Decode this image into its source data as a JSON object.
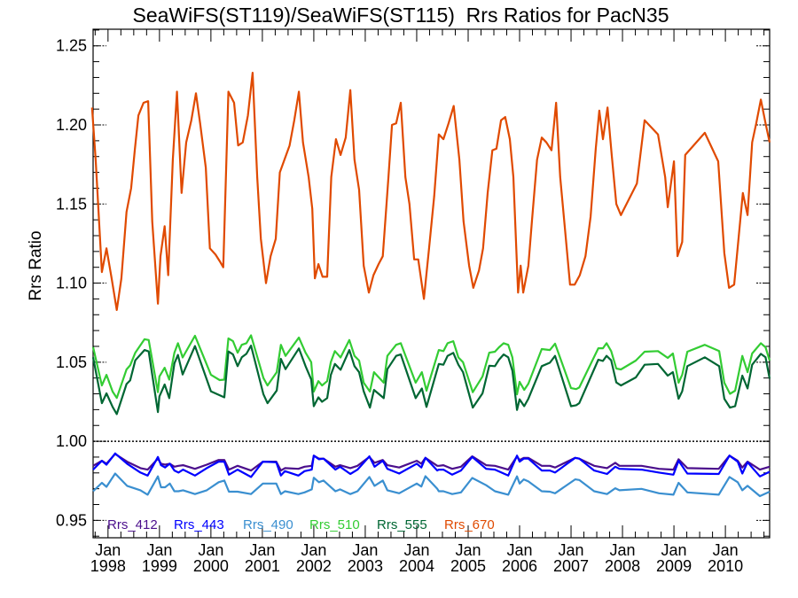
{
  "chart_data": {
    "type": "line",
    "title": "SeaWiFS(ST119)/SeaWiFS(ST115)  Rrs Ratios for PacN35",
    "ylabel": "Rrs Ratio",
    "xlabel": "",
    "xlim": [
      1997.71,
      2010.86
    ],
    "ylim": [
      0.939,
      1.2605
    ],
    "y_ticks": [
      0.95,
      1.0,
      1.05,
      1.1,
      1.15,
      1.2,
      1.25
    ],
    "y_tick_labels": [
      "0.95",
      "1.00",
      "1.05",
      "1.10",
      "1.15",
      "1.20",
      "1.25"
    ],
    "y_minor_step": 0.01,
    "x_ticks": [
      1998,
      1999,
      2000,
      2001,
      2002,
      2003,
      2004,
      2005,
      2006,
      2007,
      2008,
      2009,
      2010
    ],
    "x_tick_month": "Jan",
    "x_tick_labels": [
      "1998",
      "1999",
      "2000",
      "2001",
      "2002",
      "2003",
      "2004",
      "2005",
      "2006",
      "2007",
      "2008",
      "2009",
      "2010"
    ],
    "reference_line": 1.0,
    "legend_position": "bottom-left",
    "x_sets": {
      "red": [
        1997.69,
        1997.76,
        1997.88,
        1997.97,
        1998.07,
        1998.17,
        1998.26,
        1998.36,
        1998.45,
        1998.52,
        1998.59,
        1998.69,
        1998.78,
        1998.86,
        1998.97,
        1999.02,
        1999.1,
        1999.17,
        1999.26,
        1999.34,
        1999.43,
        1999.52,
        1999.62,
        1999.71,
        1999.79,
        1999.9,
        1999.98,
        2000.09,
        2000.17,
        2000.24,
        2000.34,
        2000.45,
        2000.53,
        2000.62,
        2000.72,
        2000.81,
        2000.9,
        2000.97,
        2001.07,
        2001.16,
        2001.26,
        2001.34,
        2001.43,
        2001.53,
        2001.62,
        2001.71,
        2001.79,
        2001.9,
        2001.97,
        2002.02,
        2002.09,
        2002.17,
        2002.26,
        2002.34,
        2002.43,
        2002.52,
        2002.62,
        2002.71,
        2002.79,
        2002.88,
        2002.97,
        2003.07,
        2003.16,
        2003.26,
        2003.34,
        2003.45,
        2003.52,
        2003.6,
        2003.69,
        2003.78,
        2003.86,
        2003.95,
        2004.03,
        2004.14,
        2004.24,
        2004.34,
        2004.43,
        2004.52,
        2004.62,
        2004.72,
        2004.83,
        2004.91,
        2005.02,
        2005.1,
        2005.21,
        2005.29,
        2005.38,
        2005.47,
        2005.55,
        2005.64,
        2005.72,
        2005.81,
        2005.88,
        2005.97,
        2006.02,
        2006.07,
        2006.17,
        2006.24,
        2006.34,
        2006.43,
        2006.52,
        2006.62,
        2006.71,
        2006.79,
        2006.9,
        2006.98,
        2007.07,
        2007.17,
        2007.28,
        2007.38,
        2007.48,
        2007.55,
        2007.62,
        2007.71,
        2007.79,
        2007.88,
        2007.97,
        2008.28,
        2008.43,
        2008.69,
        2008.83,
        2008.88,
        2009.0,
        2009.07,
        2009.16,
        2009.22,
        2009.6,
        2009.86,
        2009.98,
        2010.07,
        2010.17,
        2010.34,
        2010.43,
        2010.52,
        2010.6,
        2010.69,
        2010.78,
        2010.86
      ],
      "green": [
        1997.71,
        1997.88,
        1997.97,
        1998.09,
        1998.17,
        1998.36,
        1998.43,
        1998.53,
        1998.71,
        1998.79,
        1998.97,
        1999.0,
        1999.1,
        1999.19,
        1999.29,
        1999.36,
        1999.45,
        1999.69,
        2000.0,
        2000.17,
        2000.26,
        2000.34,
        2000.43,
        2000.52,
        2000.6,
        2000.69,
        2000.78,
        2001.02,
        2001.1,
        2001.28,
        2001.36,
        2001.45,
        2001.71,
        2001.84,
        2001.95,
        2002.0,
        2002.09,
        2002.16,
        2002.26,
        2002.33,
        2002.41,
        2002.52,
        2002.69,
        2002.79,
        2002.88,
        2002.97,
        2003.09,
        2003.17,
        2003.36,
        2003.43,
        2003.6,
        2003.69,
        2003.98,
        2004.1,
        2004.19,
        2004.43,
        2004.52,
        2004.6,
        2004.71,
        2004.81,
        2004.9,
        2005.09,
        2005.28,
        2005.41,
        2005.52,
        2005.6,
        2005.69,
        2005.78,
        2005.86,
        2005.95,
        2006.0,
        2006.09,
        2006.17,
        2006.43,
        2006.59,
        2006.69,
        2007.0,
        2007.1,
        2007.16,
        2007.53,
        2007.62,
        2007.69,
        2007.78,
        2007.88,
        2007.97,
        2008.26,
        2008.43,
        2008.69,
        2008.88,
        2008.98,
        2009.09,
        2009.16,
        2009.26,
        2009.6,
        2009.88,
        2009.98,
        2010.09,
        2010.19,
        2010.33,
        2010.43,
        2010.52,
        2010.69,
        2010.78,
        2010.86
      ],
      "blue": [
        1997.71,
        1997.88,
        1997.97,
        1998.14,
        1998.37,
        1998.63,
        1998.77,
        1998.97,
        1999.03,
        1999.11,
        1999.2,
        1999.29,
        1999.37,
        1999.46,
        1999.69,
        1999.92,
        2000.15,
        2000.26,
        2000.35,
        2000.52,
        2000.78,
        2001.01,
        2001.27,
        2001.36,
        2001.44,
        2001.7,
        2001.82,
        2001.96,
        2002.0,
        2002.1,
        2002.19,
        2002.42,
        2002.51,
        2002.71,
        2002.85,
        2003.08,
        2003.18,
        2003.34,
        2003.43,
        2003.66,
        2004.0,
        2004.09,
        2004.17,
        2004.4,
        2004.43,
        2004.52,
        2004.69,
        2004.86,
        2005.08,
        2005.35,
        2005.52,
        2005.78,
        2005.95,
        2006.0,
        2006.08,
        2006.17,
        2006.43,
        2006.59,
        2006.69,
        2007.08,
        2007.16,
        2007.45,
        2007.7,
        2007.86,
        2007.94,
        2008.37,
        2008.71,
        2008.99,
        2009.09,
        2009.26,
        2009.87,
        2010.08,
        2010.24,
        2010.33,
        2010.43,
        2010.67,
        2010.86
      ]
    },
    "series": [
      {
        "name": "Rrs_412",
        "color": "#4b0f8c",
        "x_set": "blue",
        "y": [
          0.9845,
          0.9877,
          0.9858,
          0.992,
          0.9871,
          0.983,
          0.9821,
          0.989,
          0.9858,
          0.9852,
          0.9858,
          0.9839,
          0.9845,
          0.9849,
          0.9826,
          0.9852,
          0.9882,
          0.9882,
          0.9821,
          0.9845,
          0.9815,
          0.9871,
          0.9871,
          0.9815,
          0.983,
          0.9826,
          0.9839,
          0.9845,
          0.9909,
          0.989,
          0.989,
          0.9839,
          0.9849,
          0.983,
          0.9845,
          0.9901,
          0.9864,
          0.9882,
          0.9849,
          0.9834,
          0.9877,
          0.9858,
          0.9895,
          0.9845,
          0.9845,
          0.9849,
          0.9826,
          0.9839,
          0.9905,
          0.9849,
          0.9845,
          0.9821,
          0.9905,
          0.9882,
          0.9895,
          0.9895,
          0.9845,
          0.9845,
          0.9834,
          0.9895,
          0.989,
          0.9845,
          0.983,
          0.9864,
          0.9845,
          0.9845,
          0.9826,
          0.9821,
          0.9886,
          0.983,
          0.9826,
          0.9909,
          0.9877,
          0.9834,
          0.9871,
          0.9821,
          0.9839
        ]
      },
      {
        "name": "Rrs_443",
        "color": "#0000ff",
        "x_set": "blue",
        "y": [
          0.9821,
          0.9877,
          0.9852,
          0.9923,
          0.9858,
          0.9802,
          0.9783,
          0.9901,
          0.9849,
          0.9834,
          0.9858,
          0.9815,
          0.9802,
          0.9821,
          0.9783,
          0.983,
          0.9871,
          0.9871,
          0.9789,
          0.9821,
          0.9774,
          0.9871,
          0.9867,
          0.9783,
          0.9811,
          0.9783,
          0.9811,
          0.9821,
          0.9909,
          0.9886,
          0.989,
          0.9821,
          0.9839,
          0.9793,
          0.9821,
          0.9905,
          0.9839,
          0.9877,
          0.9826,
          0.9796,
          0.9858,
          0.9834,
          0.9895,
          0.9815,
          0.9821,
          0.9821,
          0.9789,
          0.9815,
          0.9901,
          0.9826,
          0.9821,
          0.9783,
          0.9909,
          0.9871,
          0.989,
          0.989,
          0.9815,
          0.9815,
          0.9802,
          0.9895,
          0.989,
          0.9815,
          0.9793,
          0.9839,
          0.9826,
          0.9821,
          0.9802,
          0.9789,
          0.9877,
          0.9796,
          0.9793,
          0.9909,
          0.9871,
          0.9796,
          0.9867,
          0.9778,
          0.9807
        ]
      },
      {
        "name": "Rrs_490",
        "color": "#3a8fd0",
        "x_set": "blue",
        "y": [
          0.9684,
          0.9737,
          0.9712,
          0.9796,
          0.9718,
          0.969,
          0.9662,
          0.9778,
          0.9709,
          0.9709,
          0.9733,
          0.9684,
          0.9684,
          0.969,
          0.9666,
          0.969,
          0.9741,
          0.9752,
          0.9681,
          0.9681,
          0.9666,
          0.9733,
          0.9733,
          0.9666,
          0.9684,
          0.9666,
          0.9677,
          0.9696,
          0.977,
          0.9741,
          0.9752,
          0.9684,
          0.9696,
          0.9666,
          0.9684,
          0.9774,
          0.9718,
          0.9752,
          0.969,
          0.9671,
          0.9733,
          0.9714,
          0.9779,
          0.9699,
          0.9684,
          0.9684,
          0.9666,
          0.9677,
          0.9768,
          0.9722,
          0.9684,
          0.9662,
          0.9778,
          0.9733,
          0.9759,
          0.9746,
          0.9684,
          0.9681,
          0.9671,
          0.9759,
          0.9755,
          0.9684,
          0.9666,
          0.9703,
          0.969,
          0.9699,
          0.9671,
          0.9662,
          0.9737,
          0.9677,
          0.9662,
          0.9774,
          0.9741,
          0.969,
          0.9718,
          0.9653,
          0.9681
        ]
      },
      {
        "name": "Rrs_510",
        "color": "#33cc33",
        "x_set": "green",
        "y": [
          1.0596,
          1.0353,
          1.042,
          1.0314,
          1.0274,
          1.0454,
          1.048,
          1.056,
          1.0645,
          1.064,
          1.031,
          1.041,
          1.0465,
          1.039,
          1.056,
          1.062,
          1.053,
          1.0667,
          1.042,
          1.0387,
          1.039,
          1.065,
          1.0633,
          1.056,
          1.061,
          1.062,
          1.067,
          1.04,
          1.0353,
          1.0437,
          1.061,
          1.054,
          1.0656,
          1.056,
          1.05,
          1.0314,
          1.038,
          1.0353,
          1.038,
          1.05,
          1.057,
          1.053,
          1.064,
          1.054,
          1.051,
          1.037,
          1.0314,
          1.0437,
          1.037,
          1.054,
          1.061,
          1.062,
          1.037,
          1.0437,
          1.032,
          1.0577,
          1.057,
          1.062,
          1.0633,
          1.053,
          1.05,
          1.031,
          1.041,
          1.056,
          1.0566,
          1.0594,
          1.062,
          1.061,
          1.053,
          1.0297,
          1.0376,
          1.0325,
          1.0364,
          1.0583,
          1.0577,
          1.0617,
          1.0336,
          1.033,
          1.034,
          1.0588,
          1.0588,
          1.062,
          1.057,
          1.046,
          1.0454,
          1.051,
          1.0566,
          1.057,
          1.0527,
          1.0555,
          1.037,
          1.042,
          1.0566,
          1.061,
          1.057,
          1.037,
          1.03,
          1.032,
          1.054,
          1.0437,
          1.0555,
          1.062,
          1.0594,
          1.051
        ]
      },
      {
        "name": "Rrs_555",
        "color": "#006633",
        "x_set": "green",
        "y": [
          1.0531,
          1.0241,
          1.0303,
          1.0217,
          1.0172,
          1.0362,
          1.0385,
          1.0512,
          1.0577,
          1.0568,
          1.0185,
          1.0284,
          1.0359,
          1.0273,
          1.0493,
          1.0546,
          1.0422,
          1.0602,
          1.0316,
          1.0291,
          1.0278,
          1.0568,
          1.0549,
          1.0475,
          1.0531,
          1.0553,
          1.0605,
          1.0297,
          1.0241,
          1.0321,
          1.0521,
          1.0456,
          1.0587,
          1.0475,
          1.0391,
          1.0222,
          1.0278,
          1.025,
          1.0273,
          1.0419,
          1.0489,
          1.0452,
          1.0577,
          1.0475,
          1.0437,
          1.0316,
          1.0213,
          1.0325,
          1.0273,
          1.0456,
          1.054,
          1.0549,
          1.0273,
          1.0334,
          1.0217,
          1.0489,
          1.0484,
          1.054,
          1.0559,
          1.0484,
          1.0437,
          1.0213,
          1.0303,
          1.0478,
          1.0475,
          1.0516,
          1.0549,
          1.0531,
          1.0446,
          1.0198,
          1.0265,
          1.0222,
          1.0269,
          1.0475,
          1.0497,
          1.054,
          1.0222,
          1.0228,
          1.0241,
          1.0516,
          1.0508,
          1.054,
          1.0512,
          1.0372,
          1.0353,
          1.0404,
          1.0484,
          1.0489,
          1.0415,
          1.0437,
          1.0269,
          1.0316,
          1.0475,
          1.0531,
          1.0475,
          1.0269,
          1.0213,
          1.0222,
          1.0415,
          1.0334,
          1.0484,
          1.0553,
          1.0531,
          1.0396
        ]
      },
      {
        "name": "Rrs_670",
        "color": "#e04a00",
        "x_set": "red",
        "y": [
          1.211,
          1.178,
          1.107,
          1.122,
          1.103,
          1.083,
          1.103,
          1.145,
          1.16,
          1.184,
          1.206,
          1.214,
          1.215,
          1.139,
          1.087,
          1.117,
          1.136,
          1.105,
          1.178,
          1.221,
          1.157,
          1.189,
          1.203,
          1.22,
          1.201,
          1.173,
          1.122,
          1.118,
          1.114,
          1.11,
          1.221,
          1.214,
          1.187,
          1.189,
          1.206,
          1.233,
          1.167,
          1.128,
          1.1,
          1.117,
          1.128,
          1.17,
          1.178,
          1.187,
          1.203,
          1.221,
          1.189,
          1.167,
          1.147,
          1.103,
          1.112,
          1.104,
          1.104,
          1.167,
          1.191,
          1.181,
          1.192,
          1.222,
          1.178,
          1.159,
          1.111,
          1.094,
          1.105,
          1.112,
          1.117,
          1.167,
          1.2,
          1.201,
          1.214,
          1.167,
          1.15,
          1.115,
          1.115,
          1.09,
          1.122,
          1.155,
          1.194,
          1.191,
          1.201,
          1.212,
          1.178,
          1.139,
          1.111,
          1.097,
          1.108,
          1.122,
          1.157,
          1.184,
          1.185,
          1.203,
          1.205,
          1.191,
          1.167,
          1.094,
          1.111,
          1.094,
          1.111,
          1.139,
          1.178,
          1.192,
          1.189,
          1.184,
          1.214,
          1.167,
          1.128,
          1.099,
          1.099,
          1.105,
          1.117,
          1.142,
          1.185,
          1.209,
          1.191,
          1.211,
          1.181,
          1.15,
          1.143,
          1.163,
          1.203,
          1.194,
          1.167,
          1.148,
          1.177,
          1.117,
          1.126,
          1.181,
          1.195,
          1.177,
          1.119,
          1.097,
          1.099,
          1.157,
          1.143,
          1.189,
          1.201,
          1.216,
          1.201,
          1.189,
          1.153
        ]
      }
    ]
  }
}
